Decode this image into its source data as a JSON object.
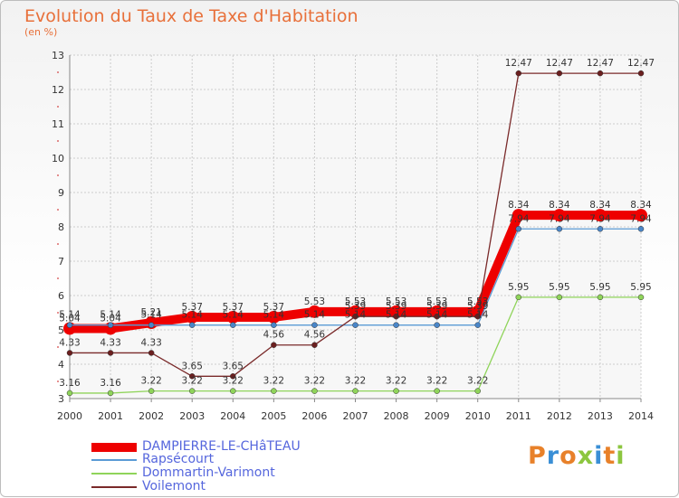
{
  "header": {
    "title": "Evolution du Taux de Taxe d'Habitation",
    "subtitle": "(en %)"
  },
  "logo": {
    "text": "Proxiti",
    "colors": [
      "#e8812a",
      "#3a8fd6",
      "#e8812a",
      "#8cc63f",
      "#3a8fd6",
      "#e8812a",
      "#8cc63f"
    ]
  },
  "chart_data": {
    "type": "line",
    "x": [
      "2000",
      "2001",
      "2002",
      "2003",
      "2004",
      "2005",
      "2006",
      "2007",
      "2008",
      "2009",
      "2010",
      "2011",
      "2012",
      "2013",
      "2014"
    ],
    "ylim": [
      3,
      13
    ],
    "yticks": [
      "3",
      "4",
      "5",
      "6",
      "7",
      "8",
      "9",
      "10",
      "11",
      "12",
      "13"
    ],
    "grid": true,
    "legend_position": "bottom-left",
    "series": [
      {
        "name": "DAMPIERRE-LE-CHâTEAU",
        "color": "#ee0000",
        "values": [
          5.04,
          5.04,
          5.21,
          5.37,
          5.37,
          5.37,
          5.53,
          5.53,
          5.53,
          5.53,
          5.53,
          8.34,
          8.34,
          8.34,
          8.34
        ],
        "labels": [
          "5.04",
          "5.04",
          "5.21",
          "5.37",
          "5.37",
          "5.37",
          "5.53",
          "5.53",
          "5.53",
          "5.53",
          "5.53",
          "8.34",
          "8.34",
          "8.34",
          "8.34"
        ]
      },
      {
        "name": "Rapsécourt",
        "color": "#5b9bd5",
        "values": [
          5.14,
          5.14,
          5.14,
          5.14,
          5.14,
          5.14,
          5.14,
          5.14,
          5.14,
          5.14,
          5.14,
          7.94,
          7.94,
          7.94,
          7.94
        ],
        "labels": [
          "5.14",
          "5.14",
          "5.14",
          "5.14",
          "5.14",
          "5.14",
          "5.14",
          "5.14",
          "5.14",
          "5.14",
          "5.14",
          "7.94",
          "7.94",
          "7.94",
          "7.94"
        ]
      },
      {
        "name": "Dommartin-Varimont",
        "color": "#8fd45a",
        "values": [
          3.16,
          3.16,
          3.22,
          3.22,
          3.22,
          3.22,
          3.22,
          3.22,
          3.22,
          3.22,
          3.22,
          5.95,
          5.95,
          5.95,
          5.95
        ],
        "labels": [
          "3.16",
          "3.16",
          "3.22",
          "3.22",
          "3.22",
          "3.22",
          "3.22",
          "3.22",
          "3.22",
          "3.22",
          "3.22",
          "5.95",
          "5.95",
          "5.95",
          "5.95"
        ]
      },
      {
        "name": "Voilemont",
        "color": "#7a2a2a",
        "values": [
          4.33,
          4.33,
          4.33,
          3.65,
          3.65,
          4.56,
          4.56,
          5.39,
          5.39,
          5.39,
          5.39,
          12.47,
          12.47,
          12.47,
          12.47
        ],
        "labels": [
          "4.33",
          "4.33",
          "4.33",
          "3.65",
          "3.65",
          "4.56",
          "4.56",
          "5.39",
          "5.39",
          "5.39",
          "5.39",
          "12.47",
          "12.47",
          "12.47",
          "12.47"
        ]
      }
    ]
  }
}
